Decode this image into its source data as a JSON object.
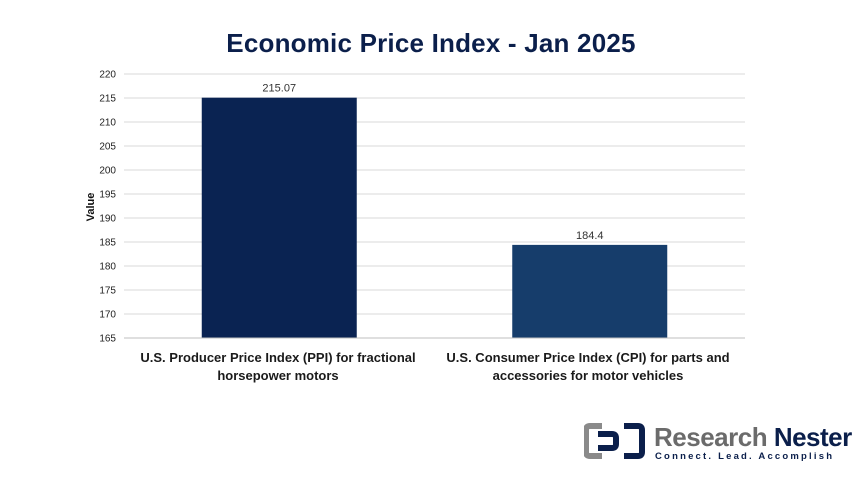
{
  "chart_data": {
    "type": "bar",
    "title": "Economic Price Index - Jan 2025",
    "ylabel": "Value",
    "xlabel": "",
    "ylim": [
      165,
      220
    ],
    "y_ticks": [
      "165",
      "170",
      "175",
      "180",
      "185",
      "190",
      "195",
      "200",
      "205",
      "210",
      "215",
      "220"
    ],
    "grid": true,
    "categories": [
      "U.S. Producer Price Index (PPI) for fractional horsepower motors",
      "U.S. Consumer Price Index (CPI) for parts and accessories for motor vehicles"
    ],
    "values": [
      215.07,
      184.4
    ],
    "data_labels": [
      "215.07",
      "184.4"
    ],
    "bar_colors": [
      "#0a2352",
      "#163d6b"
    ]
  },
  "logo": {
    "name_part1": "Research",
    "name_part2": "Nester",
    "tagline": "Connect. Lead. Accomplish"
  }
}
